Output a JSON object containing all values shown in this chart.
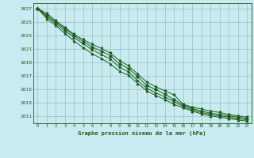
{
  "title": "Graphe pression niveau de la mer (hPa)",
  "bg_color": "#c8eaf0",
  "grid_color": "#a0c8c8",
  "line_color": "#1a5c1a",
  "text_color": "#1a5c1a",
  "ylim": [
    1010.0,
    1027.8
  ],
  "xlim": [
    -0.5,
    23.5
  ],
  "yticks": [
    1011,
    1013,
    1015,
    1017,
    1019,
    1021,
    1023,
    1025,
    1027
  ],
  "xticks": [
    0,
    1,
    2,
    3,
    4,
    5,
    6,
    7,
    8,
    9,
    10,
    11,
    12,
    13,
    14,
    15,
    16,
    17,
    18,
    19,
    20,
    21,
    22,
    23
  ],
  "lines": [
    [
      1027.0,
      1026.3,
      1025.2,
      1024.2,
      1023.2,
      1022.4,
      1021.7,
      1021.1,
      1020.4,
      1019.3,
      1018.5,
      1017.3,
      1016.1,
      1015.4,
      1014.8,
      1014.2,
      1012.8,
      1012.4,
      1012.1,
      1011.8,
      1011.6,
      1011.3,
      1011.1,
      1010.9
    ],
    [
      1027.0,
      1026.0,
      1025.0,
      1024.0,
      1023.0,
      1022.1,
      1021.3,
      1020.7,
      1020.0,
      1018.8,
      1018.1,
      1016.9,
      1015.6,
      1015.0,
      1014.3,
      1013.5,
      1012.7,
      1012.2,
      1011.8,
      1011.5,
      1011.3,
      1011.1,
      1010.9,
      1010.7
    ],
    [
      1027.0,
      1025.8,
      1024.8,
      1023.7,
      1022.7,
      1021.8,
      1020.9,
      1020.2,
      1019.5,
      1018.3,
      1017.6,
      1016.3,
      1015.2,
      1014.5,
      1013.9,
      1013.2,
      1012.5,
      1012.0,
      1011.6,
      1011.3,
      1011.1,
      1010.9,
      1010.7,
      1010.5
    ],
    [
      1027.0,
      1025.5,
      1024.5,
      1023.3,
      1022.2,
      1021.2,
      1020.3,
      1019.6,
      1018.8,
      1017.7,
      1017.1,
      1015.9,
      1014.8,
      1014.1,
      1013.5,
      1012.8,
      1012.3,
      1011.8,
      1011.4,
      1011.1,
      1010.9,
      1010.7,
      1010.5,
      1010.3
    ]
  ]
}
